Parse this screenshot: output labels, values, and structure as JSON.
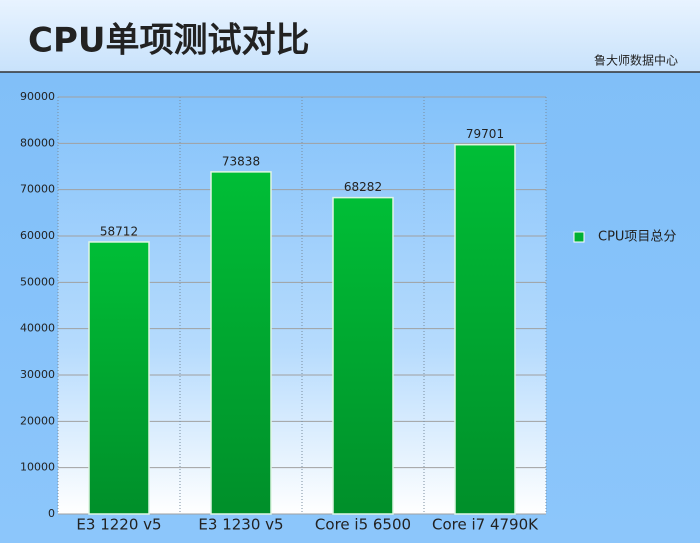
{
  "chart_data": {
    "type": "bar",
    "title": "CPU单项测试对比",
    "source": "鲁大师数据中心",
    "categories": [
      "E3 1220 v5",
      "E3 1230 v5",
      "Core i5 6500",
      "Core i7 4790K"
    ],
    "series": [
      {
        "name": "CPU项目总分",
        "color": "#00b033",
        "values": [
          58712,
          73838,
          68282,
          79701
        ]
      }
    ],
    "ylim": [
      0,
      90000
    ],
    "yticks": [
      0,
      10000,
      20000,
      30000,
      40000,
      50000,
      60000,
      70000,
      80000,
      90000
    ],
    "grid": true,
    "legend": "right"
  }
}
